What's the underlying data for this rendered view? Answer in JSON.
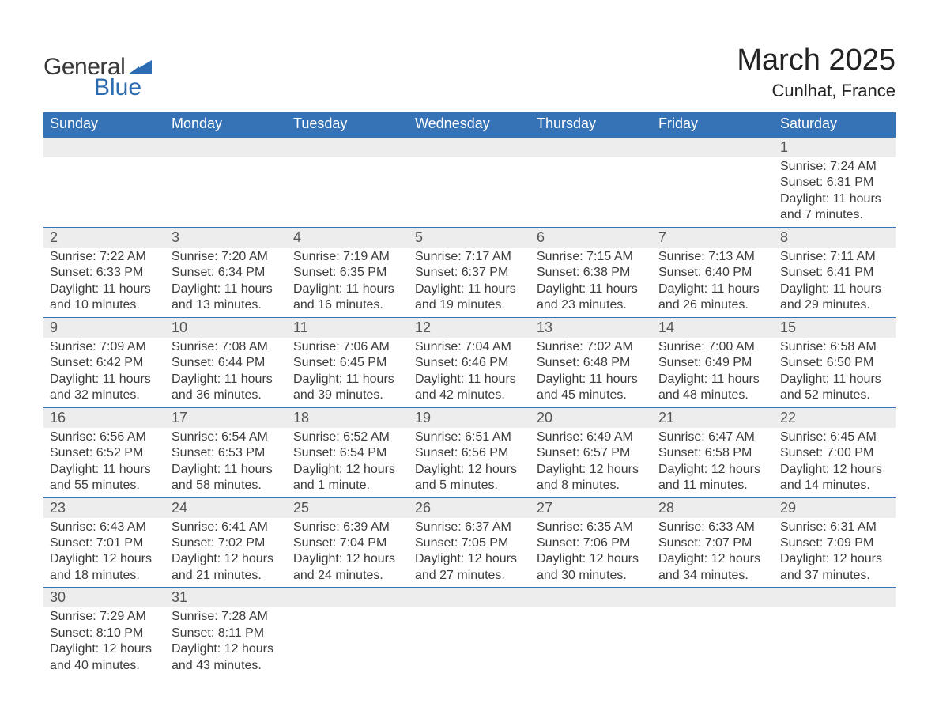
{
  "logo": {
    "general": "General",
    "blue": "Blue",
    "mark_color": "#2b6cb3"
  },
  "title": {
    "month": "March 2025",
    "location": "Cunlhat, France"
  },
  "colors": {
    "header_bg": "#3573b6",
    "header_text": "#ffffff",
    "daynum_bg": "#ededed",
    "row_border": "#3573b6",
    "body_text": "#3c3c3c",
    "page_bg": "#ffffff"
  },
  "fonts": {
    "title_month_size_pt": 28,
    "title_location_size_pt": 17,
    "header_cell_size_pt": 14,
    "daynum_size_pt": 13,
    "detail_size_pt": 12
  },
  "weekdays": [
    "Sunday",
    "Monday",
    "Tuesday",
    "Wednesday",
    "Thursday",
    "Friday",
    "Saturday"
  ],
  "weeks": [
    [
      null,
      null,
      null,
      null,
      null,
      null,
      {
        "day": "1",
        "sunrise": "Sunrise: 7:24 AM",
        "sunset": "Sunset: 6:31 PM",
        "daylight": "Daylight: 11 hours and 7 minutes."
      }
    ],
    [
      {
        "day": "2",
        "sunrise": "Sunrise: 7:22 AM",
        "sunset": "Sunset: 6:33 PM",
        "daylight": "Daylight: 11 hours and 10 minutes."
      },
      {
        "day": "3",
        "sunrise": "Sunrise: 7:20 AM",
        "sunset": "Sunset: 6:34 PM",
        "daylight": "Daylight: 11 hours and 13 minutes."
      },
      {
        "day": "4",
        "sunrise": "Sunrise: 7:19 AM",
        "sunset": "Sunset: 6:35 PM",
        "daylight": "Daylight: 11 hours and 16 minutes."
      },
      {
        "day": "5",
        "sunrise": "Sunrise: 7:17 AM",
        "sunset": "Sunset: 6:37 PM",
        "daylight": "Daylight: 11 hours and 19 minutes."
      },
      {
        "day": "6",
        "sunrise": "Sunrise: 7:15 AM",
        "sunset": "Sunset: 6:38 PM",
        "daylight": "Daylight: 11 hours and 23 minutes."
      },
      {
        "day": "7",
        "sunrise": "Sunrise: 7:13 AM",
        "sunset": "Sunset: 6:40 PM",
        "daylight": "Daylight: 11 hours and 26 minutes."
      },
      {
        "day": "8",
        "sunrise": "Sunrise: 7:11 AM",
        "sunset": "Sunset: 6:41 PM",
        "daylight": "Daylight: 11 hours and 29 minutes."
      }
    ],
    [
      {
        "day": "9",
        "sunrise": "Sunrise: 7:09 AM",
        "sunset": "Sunset: 6:42 PM",
        "daylight": "Daylight: 11 hours and 32 minutes."
      },
      {
        "day": "10",
        "sunrise": "Sunrise: 7:08 AM",
        "sunset": "Sunset: 6:44 PM",
        "daylight": "Daylight: 11 hours and 36 minutes."
      },
      {
        "day": "11",
        "sunrise": "Sunrise: 7:06 AM",
        "sunset": "Sunset: 6:45 PM",
        "daylight": "Daylight: 11 hours and 39 minutes."
      },
      {
        "day": "12",
        "sunrise": "Sunrise: 7:04 AM",
        "sunset": "Sunset: 6:46 PM",
        "daylight": "Daylight: 11 hours and 42 minutes."
      },
      {
        "day": "13",
        "sunrise": "Sunrise: 7:02 AM",
        "sunset": "Sunset: 6:48 PM",
        "daylight": "Daylight: 11 hours and 45 minutes."
      },
      {
        "day": "14",
        "sunrise": "Sunrise: 7:00 AM",
        "sunset": "Sunset: 6:49 PM",
        "daylight": "Daylight: 11 hours and 48 minutes."
      },
      {
        "day": "15",
        "sunrise": "Sunrise: 6:58 AM",
        "sunset": "Sunset: 6:50 PM",
        "daylight": "Daylight: 11 hours and 52 minutes."
      }
    ],
    [
      {
        "day": "16",
        "sunrise": "Sunrise: 6:56 AM",
        "sunset": "Sunset: 6:52 PM",
        "daylight": "Daylight: 11 hours and 55 minutes."
      },
      {
        "day": "17",
        "sunrise": "Sunrise: 6:54 AM",
        "sunset": "Sunset: 6:53 PM",
        "daylight": "Daylight: 11 hours and 58 minutes."
      },
      {
        "day": "18",
        "sunrise": "Sunrise: 6:52 AM",
        "sunset": "Sunset: 6:54 PM",
        "daylight": "Daylight: 12 hours and 1 minute."
      },
      {
        "day": "19",
        "sunrise": "Sunrise: 6:51 AM",
        "sunset": "Sunset: 6:56 PM",
        "daylight": "Daylight: 12 hours and 5 minutes."
      },
      {
        "day": "20",
        "sunrise": "Sunrise: 6:49 AM",
        "sunset": "Sunset: 6:57 PM",
        "daylight": "Daylight: 12 hours and 8 minutes."
      },
      {
        "day": "21",
        "sunrise": "Sunrise: 6:47 AM",
        "sunset": "Sunset: 6:58 PM",
        "daylight": "Daylight: 12 hours and 11 minutes."
      },
      {
        "day": "22",
        "sunrise": "Sunrise: 6:45 AM",
        "sunset": "Sunset: 7:00 PM",
        "daylight": "Daylight: 12 hours and 14 minutes."
      }
    ],
    [
      {
        "day": "23",
        "sunrise": "Sunrise: 6:43 AM",
        "sunset": "Sunset: 7:01 PM",
        "daylight": "Daylight: 12 hours and 18 minutes."
      },
      {
        "day": "24",
        "sunrise": "Sunrise: 6:41 AM",
        "sunset": "Sunset: 7:02 PM",
        "daylight": "Daylight: 12 hours and 21 minutes."
      },
      {
        "day": "25",
        "sunrise": "Sunrise: 6:39 AM",
        "sunset": "Sunset: 7:04 PM",
        "daylight": "Daylight: 12 hours and 24 minutes."
      },
      {
        "day": "26",
        "sunrise": "Sunrise: 6:37 AM",
        "sunset": "Sunset: 7:05 PM",
        "daylight": "Daylight: 12 hours and 27 minutes."
      },
      {
        "day": "27",
        "sunrise": "Sunrise: 6:35 AM",
        "sunset": "Sunset: 7:06 PM",
        "daylight": "Daylight: 12 hours and 30 minutes."
      },
      {
        "day": "28",
        "sunrise": "Sunrise: 6:33 AM",
        "sunset": "Sunset: 7:07 PM",
        "daylight": "Daylight: 12 hours and 34 minutes."
      },
      {
        "day": "29",
        "sunrise": "Sunrise: 6:31 AM",
        "sunset": "Sunset: 7:09 PM",
        "daylight": "Daylight: 12 hours and 37 minutes."
      }
    ],
    [
      {
        "day": "30",
        "sunrise": "Sunrise: 7:29 AM",
        "sunset": "Sunset: 8:10 PM",
        "daylight": "Daylight: 12 hours and 40 minutes."
      },
      {
        "day": "31",
        "sunrise": "Sunrise: 7:28 AM",
        "sunset": "Sunset: 8:11 PM",
        "daylight": "Daylight: 12 hours and 43 minutes."
      },
      null,
      null,
      null,
      null,
      null
    ]
  ]
}
